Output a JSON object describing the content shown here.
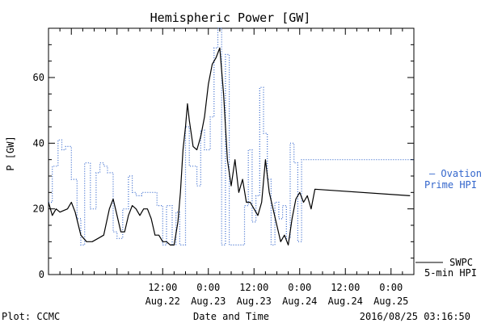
{
  "chart_data": {
    "type": "line",
    "title": "Hemispheric Power [GW]",
    "xlabel": "Date and Time",
    "ylabel": "P [GW]",
    "xlim": [
      "2016-08-21 06:00",
      "2016-08-25 06:00"
    ],
    "ylim": [
      0,
      75
    ],
    "yticks": [
      0,
      20,
      40,
      60
    ],
    "xticks": [
      {
        "x": "2016-08-22 12:00",
        "time": "12:00",
        "date": "Aug.22"
      },
      {
        "x": "2016-08-23 00:00",
        "time": "0:00",
        "date": "Aug.23"
      },
      {
        "x": "2016-08-23 12:00",
        "time": "12:00",
        "date": "Aug.23"
      },
      {
        "x": "2016-08-24 00:00",
        "time": "0:00",
        "date": "Aug.24"
      },
      {
        "x": "2016-08-24 12:00",
        "time": "12:00",
        "date": "Aug.24"
      },
      {
        "x": "2016-08-25 00:00",
        "time": "0:00",
        "date": "Aug.25"
      }
    ],
    "grid": false,
    "legend_position": "right",
    "series": [
      {
        "name": "Ovation Prime HPI",
        "legend_lines": [
          "— Ovation",
          "Prime HPI"
        ],
        "style": "dotted-step",
        "color": "#3366cc",
        "points": [
          [
            "2016-08-21 06:00",
            22
          ],
          [
            "2016-08-21 07:00",
            33
          ],
          [
            "2016-08-21 08:30",
            41
          ],
          [
            "2016-08-21 09:30",
            38
          ],
          [
            "2016-08-21 10:30",
            39
          ],
          [
            "2016-08-21 12:00",
            29
          ],
          [
            "2016-08-21 13:30",
            17
          ],
          [
            "2016-08-21 14:30",
            9
          ],
          [
            "2016-08-21 15:30",
            34
          ],
          [
            "2016-08-21 17:00",
            20
          ],
          [
            "2016-08-21 18:30",
            31
          ],
          [
            "2016-08-21 19:30",
            34
          ],
          [
            "2016-08-21 20:30",
            33
          ],
          [
            "2016-08-21 21:30",
            31
          ],
          [
            "2016-08-21 23:00",
            13
          ],
          [
            "2016-08-22 00:00",
            11
          ],
          [
            "2016-08-22 01:30",
            20
          ],
          [
            "2016-08-22 03:00",
            30
          ],
          [
            "2016-08-22 04:00",
            25
          ],
          [
            "2016-08-22 05:00",
            24
          ],
          [
            "2016-08-22 06:30",
            25
          ],
          [
            "2016-08-22 08:00",
            25
          ],
          [
            "2016-08-22 10:30",
            21
          ],
          [
            "2016-08-22 12:00",
            9
          ],
          [
            "2016-08-22 13:00",
            21
          ],
          [
            "2016-08-22 14:30",
            9
          ],
          [
            "2016-08-22 15:30",
            19
          ],
          [
            "2016-08-22 16:30",
            9
          ],
          [
            "2016-08-22 18:00",
            45
          ],
          [
            "2016-08-22 19:00",
            33
          ],
          [
            "2016-08-22 21:00",
            27
          ],
          [
            "2016-08-22 22:00",
            44
          ],
          [
            "2016-08-22 23:00",
            38
          ],
          [
            "2016-08-23 00:30",
            48
          ],
          [
            "2016-08-23 01:30",
            69
          ],
          [
            "2016-08-23 02:30",
            75
          ],
          [
            "2016-08-23 03:30",
            9
          ],
          [
            "2016-08-23 04:30",
            67
          ],
          [
            "2016-08-23 05:30",
            9
          ],
          [
            "2016-08-23 08:30",
            9
          ],
          [
            "2016-08-23 09:30",
            21
          ],
          [
            "2016-08-23 10:30",
            38
          ],
          [
            "2016-08-23 11:30",
            16
          ],
          [
            "2016-08-23 12:30",
            24
          ],
          [
            "2016-08-23 13:30",
            57
          ],
          [
            "2016-08-23 14:30",
            43
          ],
          [
            "2016-08-23 15:30",
            29
          ],
          [
            "2016-08-23 16:30",
            9
          ],
          [
            "2016-08-23 17:30",
            22
          ],
          [
            "2016-08-23 18:30",
            17
          ],
          [
            "2016-08-23 19:30",
            21
          ],
          [
            "2016-08-23 20:30",
            11
          ],
          [
            "2016-08-23 21:30",
            40
          ],
          [
            "2016-08-23 22:30",
            34
          ],
          [
            "2016-08-23 23:30",
            10
          ],
          [
            "2016-08-24 00:30",
            35
          ],
          [
            "2016-08-25 06:00",
            35
          ]
        ]
      },
      {
        "name": "SWPC 5-min HPI",
        "legend_lines": [
          "SWPC",
          "5-min HPI"
        ],
        "style": "solid",
        "color": "#000000",
        "points": [
          [
            "2016-08-21 06:00",
            22
          ],
          [
            "2016-08-21 07:00",
            18
          ],
          [
            "2016-08-21 08:00",
            20
          ],
          [
            "2016-08-21 09:00",
            19
          ],
          [
            "2016-08-21 11:00",
            20
          ],
          [
            "2016-08-21 12:00",
            22
          ],
          [
            "2016-08-21 13:00",
            19
          ],
          [
            "2016-08-21 14:30",
            12
          ],
          [
            "2016-08-21 16:00",
            10
          ],
          [
            "2016-08-21 17:30",
            10
          ],
          [
            "2016-08-21 19:00",
            11
          ],
          [
            "2016-08-21 20:30",
            12
          ],
          [
            "2016-08-21 22:00",
            20
          ],
          [
            "2016-08-21 23:00",
            23
          ],
          [
            "2016-08-22 00:00",
            18
          ],
          [
            "2016-08-22 01:00",
            13
          ],
          [
            "2016-08-22 02:00",
            13
          ],
          [
            "2016-08-22 03:00",
            18
          ],
          [
            "2016-08-22 04:00",
            21
          ],
          [
            "2016-08-22 05:00",
            20
          ],
          [
            "2016-08-22 06:00",
            18
          ],
          [
            "2016-08-22 07:00",
            20
          ],
          [
            "2016-08-22 08:00",
            20
          ],
          [
            "2016-08-22 09:00",
            17
          ],
          [
            "2016-08-22 10:00",
            12
          ],
          [
            "2016-08-22 11:00",
            12
          ],
          [
            "2016-08-22 12:00",
            10
          ],
          [
            "2016-08-22 13:00",
            10
          ],
          [
            "2016-08-22 14:00",
            9
          ],
          [
            "2016-08-22 15:00",
            9
          ],
          [
            "2016-08-22 16:00",
            16
          ],
          [
            "2016-08-22 16:40",
            25
          ],
          [
            "2016-08-22 17:20",
            38
          ],
          [
            "2016-08-22 18:00",
            45
          ],
          [
            "2016-08-22 18:30",
            52
          ],
          [
            "2016-08-22 19:00",
            47
          ],
          [
            "2016-08-22 20:00",
            39
          ],
          [
            "2016-08-22 21:00",
            38
          ],
          [
            "2016-08-22 22:00",
            42
          ],
          [
            "2016-08-22 23:00",
            48
          ],
          [
            "2016-08-23 00:00",
            58
          ],
          [
            "2016-08-23 01:00",
            64
          ],
          [
            "2016-08-23 02:00",
            66
          ],
          [
            "2016-08-23 03:00",
            69
          ],
          [
            "2016-08-23 04:00",
            55
          ],
          [
            "2016-08-23 05:00",
            35
          ],
          [
            "2016-08-23 06:00",
            27
          ],
          [
            "2016-08-23 07:00",
            35
          ],
          [
            "2016-08-23 08:00",
            25
          ],
          [
            "2016-08-23 09:00",
            29
          ],
          [
            "2016-08-23 10:00",
            22
          ],
          [
            "2016-08-23 11:00",
            22
          ],
          [
            "2016-08-23 12:00",
            20
          ],
          [
            "2016-08-23 13:00",
            18
          ],
          [
            "2016-08-23 14:00",
            22
          ],
          [
            "2016-08-23 15:00",
            35
          ],
          [
            "2016-08-23 16:00",
            25
          ],
          [
            "2016-08-23 17:00",
            20
          ],
          [
            "2016-08-23 18:00",
            15
          ],
          [
            "2016-08-23 19:00",
            10
          ],
          [
            "2016-08-23 20:00",
            12
          ],
          [
            "2016-08-23 21:00",
            9
          ],
          [
            "2016-08-23 22:00",
            17
          ],
          [
            "2016-08-23 23:00",
            23
          ],
          [
            "2016-08-24 00:00",
            25
          ],
          [
            "2016-08-24 01:00",
            22
          ],
          [
            "2016-08-24 02:00",
            24
          ],
          [
            "2016-08-24 03:00",
            20
          ],
          [
            "2016-08-24 04:00",
            26
          ],
          [
            "2016-08-25 05:00",
            24
          ]
        ]
      }
    ],
    "footer_left": "Plot: CCMC",
    "footer_right": "2016/08/25 03:16:50"
  }
}
